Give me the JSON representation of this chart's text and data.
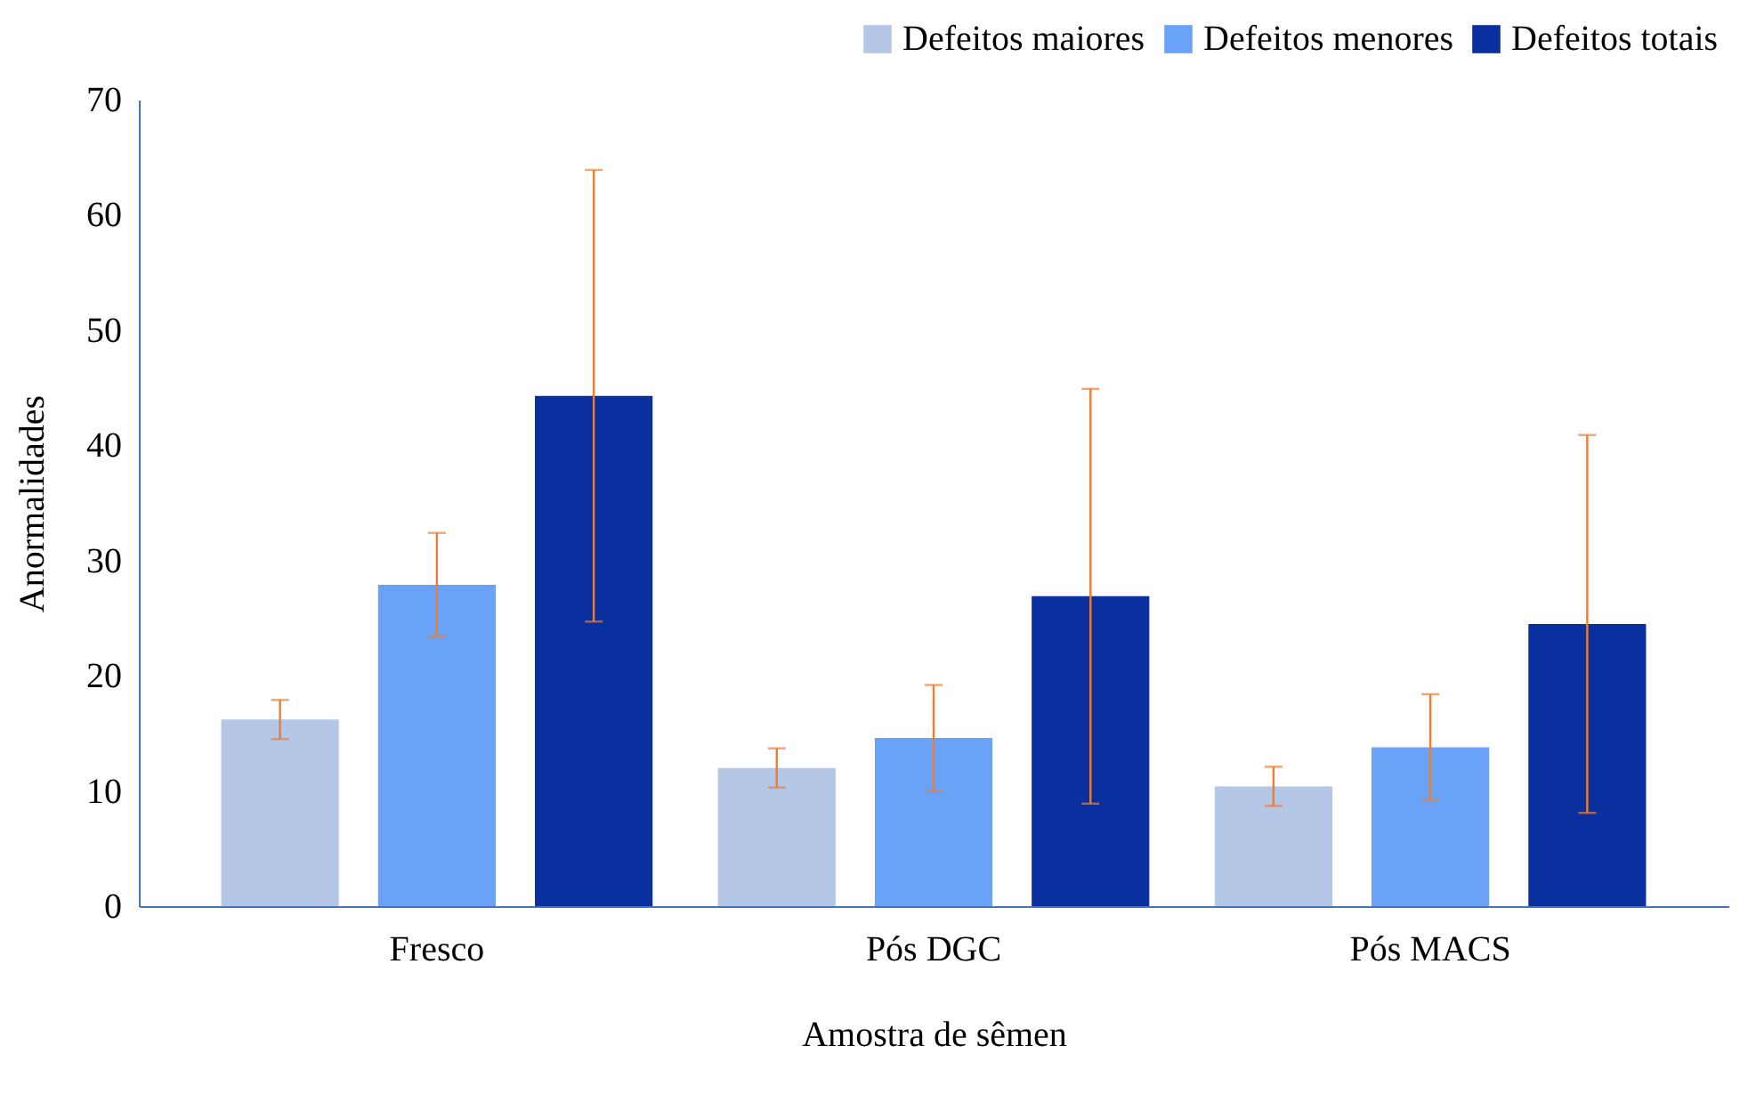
{
  "chart_data": {
    "type": "bar",
    "xlabel": "Amostra de sêmen",
    "ylabel": "Anormalidades",
    "categories": [
      "Fresco",
      "Pós DGC",
      "Pós MACS"
    ],
    "series": [
      {
        "name": "Defeitos maiores",
        "color": "#b4c7e7",
        "values": [
          16.2,
          12.0,
          10.4
        ],
        "errors": [
          1.7,
          1.7,
          1.7
        ]
      },
      {
        "name": "Defeitos menores",
        "color": "#6aa2f7",
        "values": [
          27.9,
          14.6,
          13.8
        ],
        "errors": [
          4.5,
          4.6,
          4.6
        ]
      },
      {
        "name": "Defeitos totais",
        "color": "#0a2f9f",
        "values": [
          44.3,
          26.9,
          24.5
        ],
        "errors": [
          19.6,
          18,
          16.4
        ]
      }
    ],
    "ylim": [
      0,
      70
    ],
    "yticks": [
      0,
      10,
      20,
      30,
      40,
      50,
      60,
      70
    ],
    "grid": false,
    "legend": "top right"
  }
}
